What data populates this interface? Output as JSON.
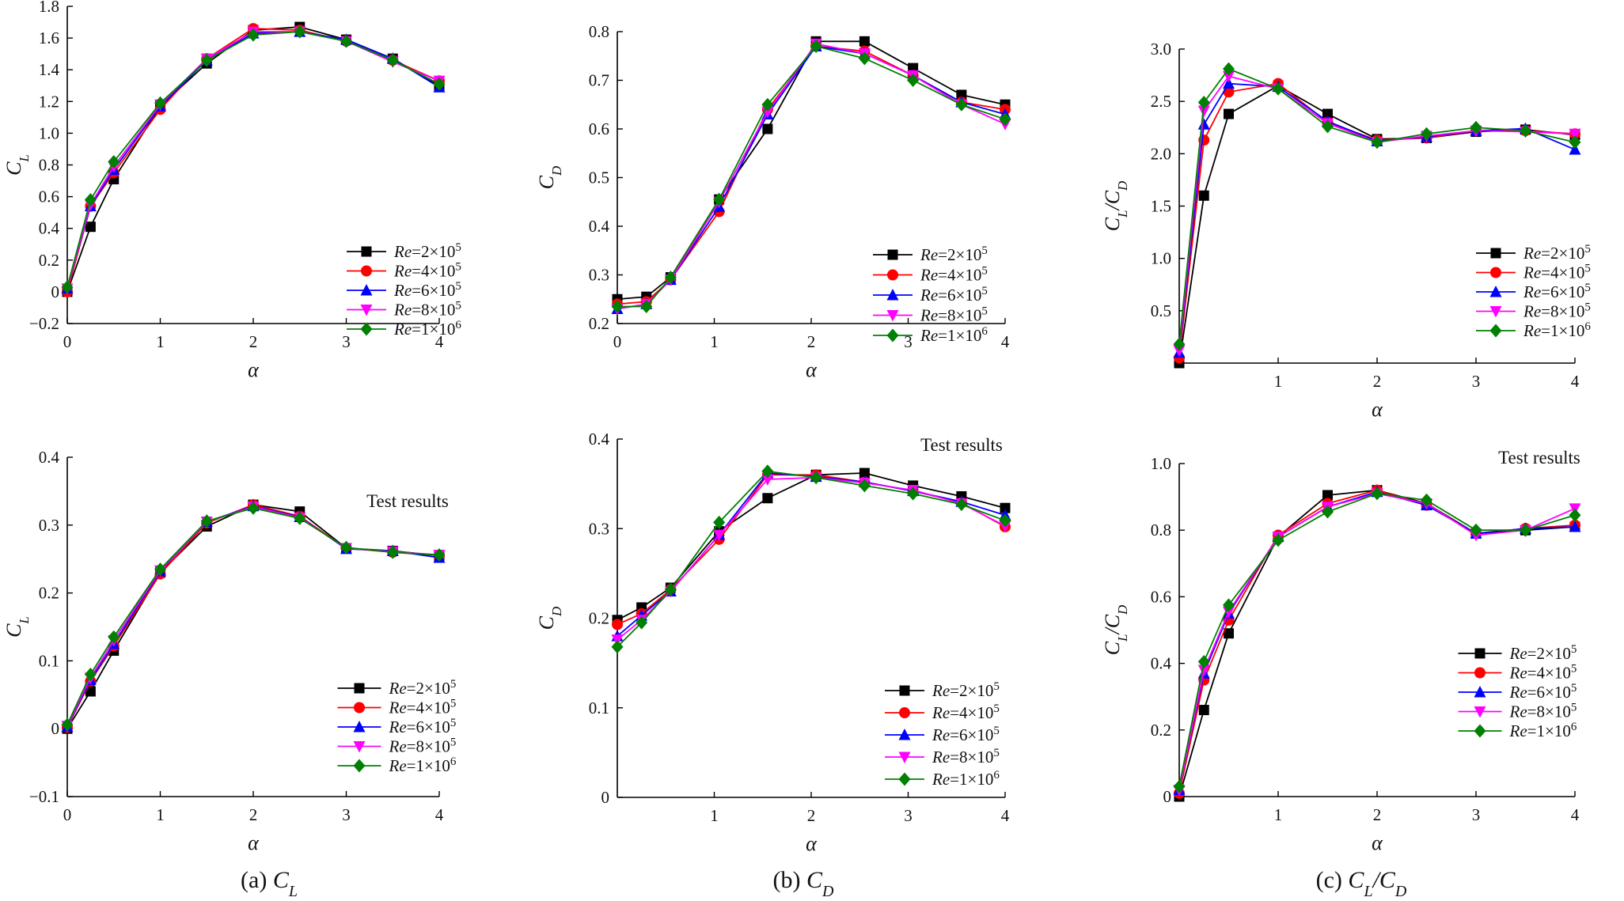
{
  "chart_data": [
    {
      "id": "cl-sim",
      "type": "line",
      "title": "",
      "xlabel": "α",
      "ylabel": "C_L",
      "xlim": [
        0,
        4
      ],
      "ylim": [
        -0.2,
        1.8
      ],
      "xticks": [
        0,
        1,
        2,
        3,
        4
      ],
      "yticks": [
        -0.2,
        0,
        0.2,
        0.4,
        0.6,
        0.8,
        1.0,
        1.2,
        1.4,
        1.6,
        1.8
      ],
      "ytick_labels": [
        "−0.2",
        "0",
        "0.2",
        "0.4",
        "0.6",
        "0.8",
        "1.0",
        "1.2",
        "1.4",
        "1.6",
        "1.8"
      ],
      "annotation": "",
      "x": [
        0,
        0.25,
        0.5,
        1,
        1.5,
        2,
        2.5,
        3,
        3.5,
        4
      ],
      "series": [
        {
          "name": "Re=2×10⁵",
          "values": [
            0.0,
            0.41,
            0.71,
            1.17,
            1.44,
            1.65,
            1.67,
            1.59,
            1.47,
            1.3
          ]
        },
        {
          "name": "Re=4×10⁵",
          "values": [
            0.0,
            0.54,
            0.75,
            1.15,
            1.47,
            1.66,
            1.65,
            1.58,
            1.46,
            1.33
          ]
        },
        {
          "name": "Re=6×10⁵",
          "values": [
            0.02,
            0.54,
            0.77,
            1.17,
            1.46,
            1.63,
            1.64,
            1.59,
            1.47,
            1.29
          ]
        },
        {
          "name": "Re=8×10⁵",
          "values": [
            0.02,
            0.55,
            0.79,
            1.18,
            1.47,
            1.64,
            1.64,
            1.58,
            1.45,
            1.33
          ]
        },
        {
          "name": "Re=1×10⁶",
          "values": [
            0.03,
            0.58,
            0.82,
            1.19,
            1.46,
            1.62,
            1.64,
            1.58,
            1.46,
            1.31
          ]
        }
      ]
    },
    {
      "id": "cd-sim",
      "type": "line",
      "title": "",
      "xlabel": "α",
      "ylabel": "C_D",
      "xlim": [
        0,
        4
      ],
      "ylim": [
        0.2,
        0.8
      ],
      "xticks": [
        0,
        1,
        2,
        3,
        4
      ],
      "yticks": [
        0.2,
        0.3,
        0.4,
        0.5,
        0.6,
        0.7,
        0.8
      ],
      "ytick_labels": [
        "0.2",
        "0.3",
        "0.4",
        "0.5",
        "0.6",
        "0.7",
        "0.8"
      ],
      "annotation": "",
      "x": [
        0,
        0.3,
        0.55,
        1.05,
        1.55,
        2.05,
        2.55,
        3.05,
        3.55,
        4
      ],
      "series": [
        {
          "name": "Re=2×10⁵",
          "values": [
            0.25,
            0.255,
            0.295,
            0.455,
            0.6,
            0.78,
            0.78,
            0.725,
            0.67,
            0.65
          ]
        },
        {
          "name": "Re=4×10⁵",
          "values": [
            0.24,
            0.245,
            0.29,
            0.43,
            0.64,
            0.77,
            0.76,
            0.71,
            0.655,
            0.64
          ]
        },
        {
          "name": "Re=6×10⁵",
          "values": [
            0.23,
            0.24,
            0.29,
            0.44,
            0.63,
            0.77,
            0.755,
            0.71,
            0.655,
            0.63
          ]
        },
        {
          "name": "Re=8×10⁵",
          "values": [
            0.23,
            0.24,
            0.29,
            0.45,
            0.635,
            0.775,
            0.755,
            0.71,
            0.65,
            0.61
          ]
        },
        {
          "name": "Re=1×10⁶",
          "values": [
            0.235,
            0.235,
            0.295,
            0.455,
            0.65,
            0.77,
            0.745,
            0.7,
            0.65,
            0.62
          ]
        }
      ]
    },
    {
      "id": "ld-sim",
      "type": "line",
      "title": "",
      "xlabel": "α",
      "ylabel": "C_L/C_D",
      "xlim": [
        0,
        4
      ],
      "ylim": [
        0,
        3.0
      ],
      "xticks": [
        1,
        2,
        3,
        4
      ],
      "yticks": [
        0.5,
        1.0,
        1.5,
        2.0,
        2.5,
        3.0
      ],
      "ytick_labels": [
        "0.5",
        "1.0",
        "1.5",
        "2.0",
        "2.5",
        "3.0"
      ],
      "annotation": "",
      "x": [
        0,
        0.25,
        0.5,
        1,
        1.5,
        2,
        2.5,
        3,
        3.5,
        4
      ],
      "series": [
        {
          "name": "Re=2×10⁵",
          "values": [
            0.0,
            1.6,
            2.38,
            2.65,
            2.38,
            2.14,
            2.15,
            2.21,
            2.23,
            2.18
          ]
        },
        {
          "name": "Re=4×10⁵",
          "values": [
            0.05,
            2.13,
            2.59,
            2.67,
            2.3,
            2.13,
            2.15,
            2.22,
            2.22,
            2.19
          ]
        },
        {
          "name": "Re=6×10⁵",
          "values": [
            0.1,
            2.28,
            2.67,
            2.64,
            2.31,
            2.12,
            2.16,
            2.22,
            2.24,
            2.04
          ]
        },
        {
          "name": "Re=8×10⁵",
          "values": [
            0.12,
            2.41,
            2.74,
            2.62,
            2.29,
            2.11,
            2.17,
            2.22,
            2.21,
            2.19
          ]
        },
        {
          "name": "Re=1×10⁶",
          "values": [
            0.18,
            2.49,
            2.81,
            2.62,
            2.26,
            2.11,
            2.19,
            2.25,
            2.22,
            2.11
          ]
        }
      ]
    },
    {
      "id": "cl-test",
      "type": "line",
      "title": "",
      "xlabel": "α",
      "ylabel": "C_L",
      "xlim": [
        0,
        4
      ],
      "ylim": [
        -0.1,
        0.4
      ],
      "xticks": [
        0,
        1,
        2,
        3,
        4
      ],
      "yticks": [
        -0.1,
        0,
        0.1,
        0.2,
        0.3,
        0.4
      ],
      "ytick_labels": [
        "−0.1",
        "0",
        "0.1",
        "0.2",
        "0.3",
        "0.4"
      ],
      "annotation": "Test results",
      "x": [
        0,
        0.25,
        0.5,
        1,
        1.5,
        2,
        2.5,
        3,
        3.5,
        4
      ],
      "series": [
        {
          "name": "Re=2×10⁵",
          "values": [
            0.0,
            0.055,
            0.115,
            0.23,
            0.298,
            0.33,
            0.32,
            0.266,
            0.262,
            0.255
          ]
        },
        {
          "name": "Re=4×10⁵",
          "values": [
            0.002,
            0.07,
            0.122,
            0.228,
            0.303,
            0.33,
            0.313,
            0.266,
            0.26,
            0.255
          ]
        },
        {
          "name": "Re=6×10⁵",
          "values": [
            0.003,
            0.072,
            0.125,
            0.232,
            0.305,
            0.328,
            0.312,
            0.265,
            0.262,
            0.252
          ]
        },
        {
          "name": "Re=8×10⁵",
          "values": [
            0.004,
            0.075,
            0.13,
            0.233,
            0.305,
            0.327,
            0.311,
            0.266,
            0.261,
            0.256
          ]
        },
        {
          "name": "Re=1×10⁶",
          "values": [
            0.006,
            0.08,
            0.135,
            0.235,
            0.306,
            0.325,
            0.31,
            0.267,
            0.26,
            0.256
          ]
        }
      ]
    },
    {
      "id": "cd-test",
      "type": "line",
      "title": "",
      "xlabel": "α",
      "ylabel": "C_D",
      "xlim": [
        0,
        4
      ],
      "ylim": [
        0,
        0.4
      ],
      "xticks": [
        1,
        2,
        3,
        4
      ],
      "yticks": [
        0,
        0.1,
        0.2,
        0.3,
        0.4
      ],
      "ytick_labels": [
        "0",
        "0.1",
        "0.2",
        "0.3",
        "0.4"
      ],
      "annotation": "Test results",
      "x": [
        0,
        0.25,
        0.55,
        1.05,
        1.55,
        2.05,
        2.55,
        3.05,
        3.55,
        4
      ],
      "series": [
        {
          "name": "Re=2×10⁵",
          "values": [
            0.198,
            0.212,
            0.234,
            0.297,
            0.334,
            0.36,
            0.362,
            0.348,
            0.336,
            0.323
          ]
        },
        {
          "name": "Re=4×10⁵",
          "values": [
            0.193,
            0.205,
            0.232,
            0.288,
            0.36,
            0.36,
            0.352,
            0.342,
            0.329,
            0.302
          ]
        },
        {
          "name": "Re=6×10⁵",
          "values": [
            0.18,
            0.203,
            0.23,
            0.293,
            0.362,
            0.358,
            0.352,
            0.342,
            0.33,
            0.315
          ]
        },
        {
          "name": "Re=8×10⁵",
          "values": [
            0.176,
            0.198,
            0.23,
            0.293,
            0.355,
            0.357,
            0.351,
            0.343,
            0.328,
            0.303
          ]
        },
        {
          "name": "Re=1×10⁶",
          "values": [
            0.168,
            0.195,
            0.232,
            0.307,
            0.364,
            0.357,
            0.348,
            0.339,
            0.327,
            0.309
          ]
        }
      ]
    },
    {
      "id": "ld-test",
      "type": "line",
      "title": "",
      "xlabel": "α",
      "ylabel": "C_L/C_D",
      "xlim": [
        0,
        4
      ],
      "ylim": [
        0,
        1.0
      ],
      "xticks": [
        1,
        2,
        3,
        4
      ],
      "yticks": [
        0,
        0.2,
        0.4,
        0.6,
        0.8,
        1.0
      ],
      "ytick_labels": [
        "0",
        "0.2",
        "0.4",
        "0.6",
        "0.8",
        "1.0"
      ],
      "annotation": "Test results",
      "x": [
        0,
        0.25,
        0.5,
        1,
        1.5,
        2,
        2.5,
        3,
        3.5,
        4
      ],
      "series": [
        {
          "name": "Re=2×10⁵",
          "values": [
            0.0,
            0.26,
            0.49,
            0.78,
            0.905,
            0.92,
            0.88,
            0.79,
            0.8,
            0.81
          ]
        },
        {
          "name": "Re=4×10⁵",
          "values": [
            0.01,
            0.35,
            0.53,
            0.785,
            0.88,
            0.92,
            0.875,
            0.79,
            0.805,
            0.815
          ]
        },
        {
          "name": "Re=6×10⁵",
          "values": [
            0.02,
            0.37,
            0.55,
            0.78,
            0.87,
            0.915,
            0.875,
            0.79,
            0.805,
            0.81
          ]
        },
        {
          "name": "Re=8×10⁵",
          "values": [
            0.02,
            0.38,
            0.555,
            0.78,
            0.87,
            0.91,
            0.88,
            0.785,
            0.8,
            0.865
          ]
        },
        {
          "name": "Re=1×10⁶",
          "values": [
            0.03,
            0.405,
            0.575,
            0.77,
            0.855,
            0.91,
            0.89,
            0.8,
            0.8,
            0.845
          ]
        }
      ]
    }
  ],
  "legend_labels": [
    "Re=2×10⁵",
    "Re=4×10⁵",
    "Re=6×10⁵",
    "Re=8×10⁵",
    "Re=1×10⁶"
  ],
  "series_colors": [
    "#000000",
    "#ff0000",
    "#0000ff",
    "#ff00ff",
    "#008000"
  ],
  "captions": [
    "(a) C_L",
    "(b) C_D",
    "(c) C_L/C_D"
  ]
}
